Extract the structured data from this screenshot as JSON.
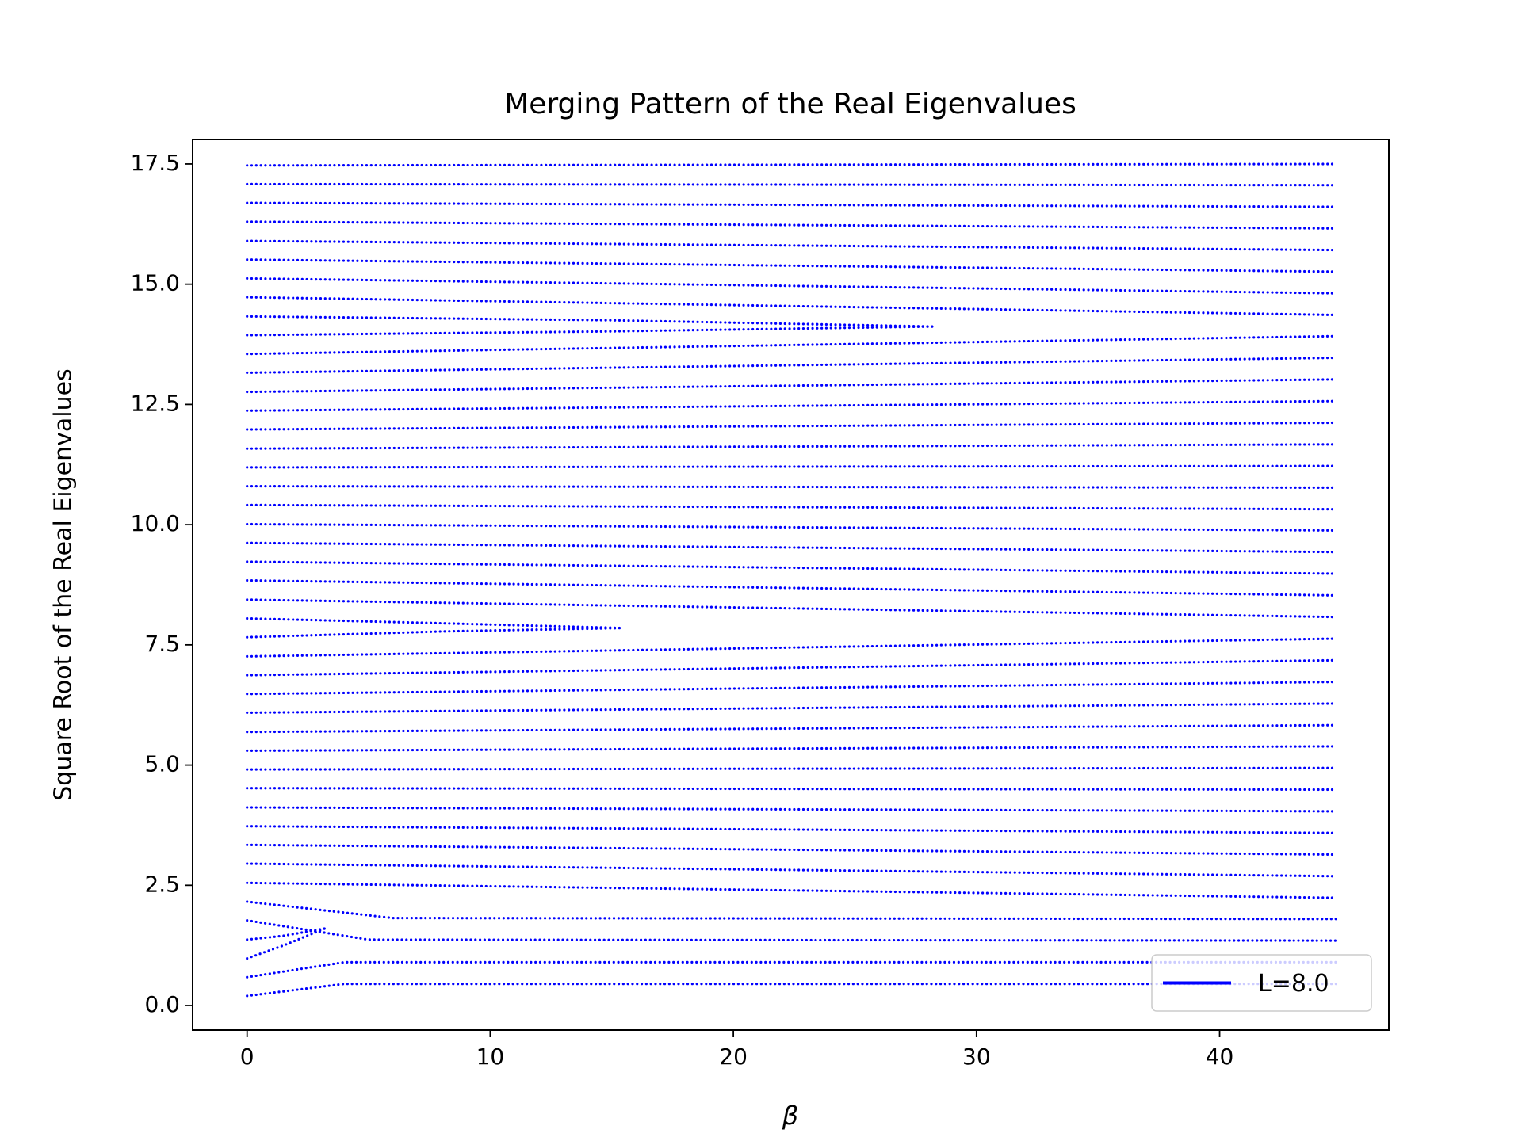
{
  "chart_data": {
    "type": "line",
    "title": "Merging Pattern of the Real Eigenvalues",
    "xlabel": "β",
    "ylabel": "Square Root of the Real Eigenvalues",
    "xlim": [
      -2.24,
      46.96
    ],
    "ylim": [
      -0.51,
      18.01
    ],
    "xticks": [
      0,
      10,
      20,
      30,
      40
    ],
    "yticks": [
      {
        "value": 0,
        "label": "0.0"
      },
      2.5,
      {
        "value": 5,
        "label": "5.0"
      },
      7.5,
      {
        "value": 10,
        "label": "10.0"
      },
      12.5,
      {
        "value": 15,
        "label": "15.0"
      },
      17.5
    ],
    "legend": "lower right",
    "series": [
      {
        "name": "L=8.0",
        "color": "#0000ff",
        "x": [
          0,
          4,
          44.8
        ],
        "values": [
          0.2,
          0.45,
          0.45
        ]
      },
      {
        "color": "#0000ff",
        "x": [
          0,
          4,
          44.8
        ],
        "values": [
          0.59,
          0.9,
          0.9
        ]
      },
      {
        "color": "#0000ff",
        "x": [
          0,
          1.5,
          3.2
        ],
        "values": [
          0.98,
          1.25,
          1.6
        ]
      },
      {
        "color": "#0000ff",
        "x": [
          0,
          1.5,
          3.2
        ],
        "values": [
          1.37,
          1.45,
          1.6
        ]
      },
      {
        "color": "#0000ff",
        "x": [
          0,
          5,
          44.8
        ],
        "values": [
          1.77,
          1.37,
          1.35
        ]
      },
      {
        "color": "#0000ff",
        "x": [
          0,
          6,
          44.8
        ],
        "values": [
          2.16,
          1.82,
          1.8
        ]
      },
      {
        "color": "#0000ff",
        "x": [
          0,
          44.8
        ],
        "values": [
          2.55,
          2.24
        ]
      },
      {
        "color": "#0000ff",
        "x": [
          0,
          44.8
        ],
        "values": [
          2.95,
          2.69
        ]
      },
      {
        "color": "#0000ff",
        "x": [
          0,
          44.8
        ],
        "values": [
          3.34,
          3.14
        ]
      },
      {
        "color": "#0000ff",
        "x": [
          0,
          44.8
        ],
        "values": [
          3.73,
          3.59
        ]
      },
      {
        "color": "#0000ff",
        "x": [
          0,
          44.8
        ],
        "values": [
          4.12,
          4.04
        ]
      },
      {
        "color": "#0000ff",
        "x": [
          0,
          44.8
        ],
        "values": [
          4.52,
          4.49
        ]
      },
      {
        "color": "#0000ff",
        "x": [
          0,
          44.8
        ],
        "values": [
          4.91,
          4.94
        ]
      },
      {
        "color": "#0000ff",
        "x": [
          0,
          44.8
        ],
        "values": [
          5.3,
          5.39
        ]
      },
      {
        "color": "#0000ff",
        "x": [
          0,
          44.8
        ],
        "values": [
          5.69,
          5.83
        ]
      },
      {
        "color": "#0000ff",
        "x": [
          0,
          44.8
        ],
        "values": [
          6.09,
          6.28
        ]
      },
      {
        "color": "#0000ff",
        "x": [
          0,
          44.8
        ],
        "values": [
          6.48,
          6.73
        ]
      },
      {
        "color": "#0000ff",
        "x": [
          0,
          44.8
        ],
        "values": [
          6.87,
          7.18
        ]
      },
      {
        "color": "#0000ff",
        "x": [
          0,
          44.8
        ],
        "values": [
          7.26,
          7.63
        ]
      },
      {
        "color": "#0000ff",
        "x": [
          0,
          8,
          15.5
        ],
        "values": [
          7.66,
          7.78,
          7.85
        ]
      },
      {
        "color": "#0000ff",
        "x": [
          0,
          8,
          15.5
        ],
        "values": [
          8.05,
          7.95,
          7.85
        ]
      },
      {
        "color": "#0000ff",
        "x": [
          0,
          44.8
        ],
        "values": [
          8.44,
          8.08
        ]
      },
      {
        "color": "#0000ff",
        "x": [
          0,
          44.8
        ],
        "values": [
          8.84,
          8.53
        ]
      },
      {
        "color": "#0000ff",
        "x": [
          0,
          44.8
        ],
        "values": [
          9.23,
          8.98
        ]
      },
      {
        "color": "#0000ff",
        "x": [
          0,
          44.8
        ],
        "values": [
          9.62,
          9.43
        ]
      },
      {
        "color": "#0000ff",
        "x": [
          0,
          44.8
        ],
        "values": [
          10.01,
          9.88
        ]
      },
      {
        "color": "#0000ff",
        "x": [
          0,
          44.8
        ],
        "values": [
          10.41,
          10.32
        ]
      },
      {
        "color": "#0000ff",
        "x": [
          0,
          44.8
        ],
        "values": [
          10.8,
          10.77
        ]
      },
      {
        "color": "#0000ff",
        "x": [
          0,
          44.8
        ],
        "values": [
          11.19,
          11.22
        ]
      },
      {
        "color": "#0000ff",
        "x": [
          0,
          44.8
        ],
        "values": [
          11.58,
          11.67
        ]
      },
      {
        "color": "#0000ff",
        "x": [
          0,
          44.8
        ],
        "values": [
          11.98,
          12.12
        ]
      },
      {
        "color": "#0000ff",
        "x": [
          0,
          44.8
        ],
        "values": [
          12.37,
          12.57
        ]
      },
      {
        "color": "#0000ff",
        "x": [
          0,
          44.8
        ],
        "values": [
          12.76,
          13.02
        ]
      },
      {
        "color": "#0000ff",
        "x": [
          0,
          44.8
        ],
        "values": [
          13.16,
          13.47
        ]
      },
      {
        "color": "#0000ff",
        "x": [
          0,
          44.8
        ],
        "values": [
          13.55,
          13.92
        ]
      },
      {
        "color": "#0000ff",
        "x": [
          0,
          15,
          28.2
        ],
        "values": [
          13.94,
          14.02,
          14.12
        ]
      },
      {
        "color": "#0000ff",
        "x": [
          0,
          15,
          28.2
        ],
        "values": [
          14.33,
          14.25,
          14.12
        ]
      },
      {
        "color": "#0000ff",
        "x": [
          0,
          44.8
        ],
        "values": [
          14.73,
          14.36
        ]
      },
      {
        "color": "#0000ff",
        "x": [
          0,
          44.8
        ],
        "values": [
          15.12,
          14.81
        ]
      },
      {
        "color": "#0000ff",
        "x": [
          0,
          44.8
        ],
        "values": [
          15.51,
          15.26
        ]
      },
      {
        "color": "#0000ff",
        "x": [
          0,
          44.8
        ],
        "values": [
          15.9,
          15.71
        ]
      },
      {
        "color": "#0000ff",
        "x": [
          0,
          44.8
        ],
        "values": [
          16.3,
          16.16
        ]
      },
      {
        "color": "#0000ff",
        "x": [
          0,
          44.8
        ],
        "values": [
          16.69,
          16.61
        ]
      },
      {
        "color": "#0000ff",
        "x": [
          0,
          44.8
        ],
        "values": [
          17.08,
          17.06
        ]
      },
      {
        "color": "#0000ff",
        "x": [
          0,
          44.8
        ],
        "values": [
          17.47,
          17.5
        ]
      }
    ]
  }
}
